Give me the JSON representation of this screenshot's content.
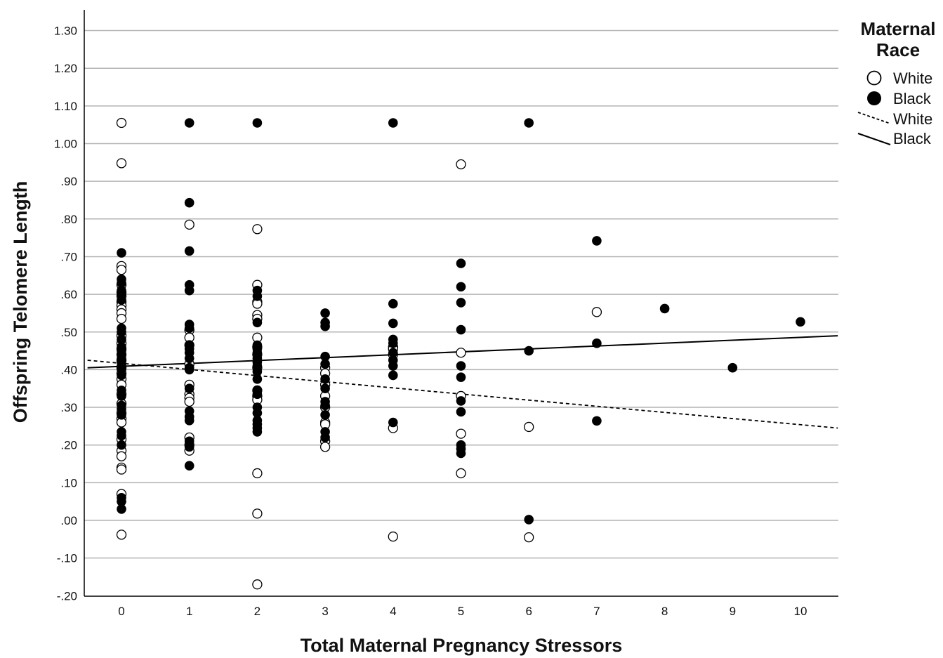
{
  "chart_data": {
    "type": "scatter",
    "xlabel": "Total Maternal Pregnancy Stressors",
    "ylabel": "Offspring Telomere Length",
    "xlim": [
      -0.5,
      10.55
    ],
    "ylim": [
      -0.2,
      1.35
    ],
    "x_ticks": [
      "0",
      "1",
      "2",
      "3",
      "4",
      "5",
      "6",
      "7",
      "8",
      "9",
      "10"
    ],
    "y_ticks": [
      {
        "value": 1.3,
        "label": "1.30"
      },
      {
        "value": 1.2,
        "label": "1.20"
      },
      {
        "value": 1.1,
        "label": "1.10"
      },
      {
        "value": 1.0,
        "label": "1.00"
      },
      {
        "value": 0.9,
        "label": ".90"
      },
      {
        "value": 0.8,
        "label": ".80"
      },
      {
        "value": 0.7,
        "label": ".70"
      },
      {
        "value": 0.6,
        "label": ".60"
      },
      {
        "value": 0.5,
        "label": ".50"
      },
      {
        "value": 0.4,
        "label": ".40"
      },
      {
        "value": 0.3,
        "label": ".30"
      },
      {
        "value": 0.2,
        "label": ".20"
      },
      {
        "value": 0.1,
        "label": ".10"
      },
      {
        "value": 0.0,
        "label": ".00"
      },
      {
        "value": -0.1,
        "label": "-.10"
      },
      {
        "value": -0.2,
        "label": "-.20"
      }
    ],
    "grid": "horizontal",
    "legend": {
      "title_line1": "Maternal",
      "title_line2": "Race",
      "placement": "top-right",
      "entries": [
        {
          "label": "White",
          "kind": "open-circle"
        },
        {
          "label": "Black",
          "kind": "filled-circle"
        },
        {
          "label": "White",
          "kind": "dashed-line"
        },
        {
          "label": "Black",
          "kind": "solid-line"
        }
      ]
    },
    "series": [
      {
        "name": "White",
        "marker": "open-circle",
        "points": [
          [
            0,
            1.055
          ],
          [
            0,
            0.948
          ],
          [
            0,
            0.675
          ],
          [
            0,
            0.665
          ],
          [
            0,
            0.625
          ],
          [
            0,
            0.605
          ],
          [
            0,
            0.595
          ],
          [
            0,
            0.58
          ],
          [
            0,
            0.57
          ],
          [
            0,
            0.56
          ],
          [
            0,
            0.55
          ],
          [
            0,
            0.535
          ],
          [
            0,
            0.49
          ],
          [
            0,
            0.47
          ],
          [
            0,
            0.455
          ],
          [
            0,
            0.44
          ],
          [
            0,
            0.425
          ],
          [
            0,
            0.405
          ],
          [
            0,
            0.39
          ],
          [
            0,
            0.375
          ],
          [
            0,
            0.36
          ],
          [
            0,
            0.335
          ],
          [
            0,
            0.31
          ],
          [
            0,
            0.285
          ],
          [
            0,
            0.27
          ],
          [
            0,
            0.26
          ],
          [
            0,
            0.215
          ],
          [
            0,
            0.185
          ],
          [
            0,
            0.17
          ],
          [
            0,
            0.14
          ],
          [
            0,
            0.135
          ],
          [
            0,
            0.07
          ],
          [
            0,
            -0.038
          ],
          [
            1,
            0.785
          ],
          [
            1,
            0.505
          ],
          [
            1,
            0.485
          ],
          [
            1,
            0.465
          ],
          [
            1,
            0.415
          ],
          [
            1,
            0.36
          ],
          [
            1,
            0.335
          ],
          [
            1,
            0.325
          ],
          [
            1,
            0.315
          ],
          [
            1,
            0.22
          ],
          [
            1,
            0.2
          ],
          [
            1,
            0.185
          ],
          [
            2,
            0.773
          ],
          [
            2,
            0.625
          ],
          [
            2,
            0.58
          ],
          [
            2,
            0.575
          ],
          [
            2,
            0.545
          ],
          [
            2,
            0.535
          ],
          [
            2,
            0.485
          ],
          [
            2,
            0.46
          ],
          [
            2,
            0.44
          ],
          [
            2,
            0.405
          ],
          [
            2,
            0.345
          ],
          [
            2,
            0.33
          ],
          [
            2,
            0.32
          ],
          [
            2,
            0.125
          ],
          [
            2,
            0.018
          ],
          [
            2,
            -0.17
          ],
          [
            3,
            0.405
          ],
          [
            3,
            0.39
          ],
          [
            3,
            0.36
          ],
          [
            3,
            0.33
          ],
          [
            3,
            0.3
          ],
          [
            3,
            0.26
          ],
          [
            3,
            0.255
          ],
          [
            3,
            0.21
          ],
          [
            3,
            0.195
          ],
          [
            4,
            0.46
          ],
          [
            4,
            0.455
          ],
          [
            4,
            0.44
          ],
          [
            4,
            0.245
          ],
          [
            4,
            -0.043
          ],
          [
            5,
            0.945
          ],
          [
            5,
            0.445
          ],
          [
            5,
            0.33
          ],
          [
            5,
            0.23
          ],
          [
            5,
            0.125
          ],
          [
            6,
            0.248
          ],
          [
            6,
            -0.045
          ],
          [
            7,
            0.553
          ]
        ]
      },
      {
        "name": "Black",
        "marker": "filled-circle",
        "points": [
          [
            0,
            0.71
          ],
          [
            0,
            0.64
          ],
          [
            0,
            0.63
          ],
          [
            0,
            0.61
          ],
          [
            0,
            0.6
          ],
          [
            0,
            0.585
          ],
          [
            0,
            0.51
          ],
          [
            0,
            0.5
          ],
          [
            0,
            0.48
          ],
          [
            0,
            0.46
          ],
          [
            0,
            0.45
          ],
          [
            0,
            0.44
          ],
          [
            0,
            0.43
          ],
          [
            0,
            0.42
          ],
          [
            0,
            0.41
          ],
          [
            0,
            0.4
          ],
          [
            0,
            0.385
          ],
          [
            0,
            0.345
          ],
          [
            0,
            0.33
          ],
          [
            0,
            0.305
          ],
          [
            0,
            0.295
          ],
          [
            0,
            0.28
          ],
          [
            0,
            0.235
          ],
          [
            0,
            0.225
          ],
          [
            0,
            0.2
          ],
          [
            0,
            0.06
          ],
          [
            0,
            0.05
          ],
          [
            0,
            0.03
          ],
          [
            1,
            1.055
          ],
          [
            1,
            0.843
          ],
          [
            1,
            0.715
          ],
          [
            1,
            0.625
          ],
          [
            1,
            0.61
          ],
          [
            1,
            0.52
          ],
          [
            1,
            0.51
          ],
          [
            1,
            0.465
          ],
          [
            1,
            0.455
          ],
          [
            1,
            0.445
          ],
          [
            1,
            0.43
          ],
          [
            1,
            0.405
          ],
          [
            1,
            0.4
          ],
          [
            1,
            0.35
          ],
          [
            1,
            0.29
          ],
          [
            1,
            0.275
          ],
          [
            1,
            0.265
          ],
          [
            1,
            0.21
          ],
          [
            1,
            0.195
          ],
          [
            1,
            0.145
          ],
          [
            2,
            1.055
          ],
          [
            2,
            0.61
          ],
          [
            2,
            0.595
          ],
          [
            2,
            0.525
          ],
          [
            2,
            0.465
          ],
          [
            2,
            0.455
          ],
          [
            2,
            0.445
          ],
          [
            2,
            0.43
          ],
          [
            2,
            0.42
          ],
          [
            2,
            0.41
          ],
          [
            2,
            0.395
          ],
          [
            2,
            0.375
          ],
          [
            2,
            0.345
          ],
          [
            2,
            0.335
          ],
          [
            2,
            0.3
          ],
          [
            2,
            0.285
          ],
          [
            2,
            0.265
          ],
          [
            2,
            0.255
          ],
          [
            2,
            0.245
          ],
          [
            2,
            0.235
          ],
          [
            3,
            0.55
          ],
          [
            3,
            0.525
          ],
          [
            3,
            0.515
          ],
          [
            3,
            0.435
          ],
          [
            3,
            0.415
          ],
          [
            3,
            0.375
          ],
          [
            3,
            0.35
          ],
          [
            3,
            0.315
          ],
          [
            3,
            0.305
          ],
          [
            3,
            0.28
          ],
          [
            3,
            0.235
          ],
          [
            3,
            0.22
          ],
          [
            4,
            1.055
          ],
          [
            4,
            0.575
          ],
          [
            4,
            0.523
          ],
          [
            4,
            0.48
          ],
          [
            4,
            0.47
          ],
          [
            4,
            0.445
          ],
          [
            4,
            0.425
          ],
          [
            4,
            0.41
          ],
          [
            4,
            0.385
          ],
          [
            4,
            0.26
          ],
          [
            5,
            0.682
          ],
          [
            5,
            0.62
          ],
          [
            5,
            0.578
          ],
          [
            5,
            0.506
          ],
          [
            5,
            0.41
          ],
          [
            5,
            0.38
          ],
          [
            5,
            0.317
          ],
          [
            5,
            0.288
          ],
          [
            5,
            0.2
          ],
          [
            5,
            0.19
          ],
          [
            5,
            0.178
          ],
          [
            6,
            1.055
          ],
          [
            6,
            0.45
          ],
          [
            6,
            0.002
          ],
          [
            7,
            0.742
          ],
          [
            7,
            0.47
          ],
          [
            7,
            0.264
          ],
          [
            8,
            0.562
          ],
          [
            9,
            0.405
          ],
          [
            10,
            0.527
          ]
        ]
      }
    ],
    "fit_lines": [
      {
        "name": "White",
        "style": "dashed",
        "x": [
          -0.5,
          10.55
        ],
        "y": [
          0.425,
          0.245
        ]
      },
      {
        "name": "Black",
        "style": "solid",
        "x": [
          -0.5,
          10.55
        ],
        "y": [
          0.405,
          0.49
        ]
      }
    ]
  }
}
